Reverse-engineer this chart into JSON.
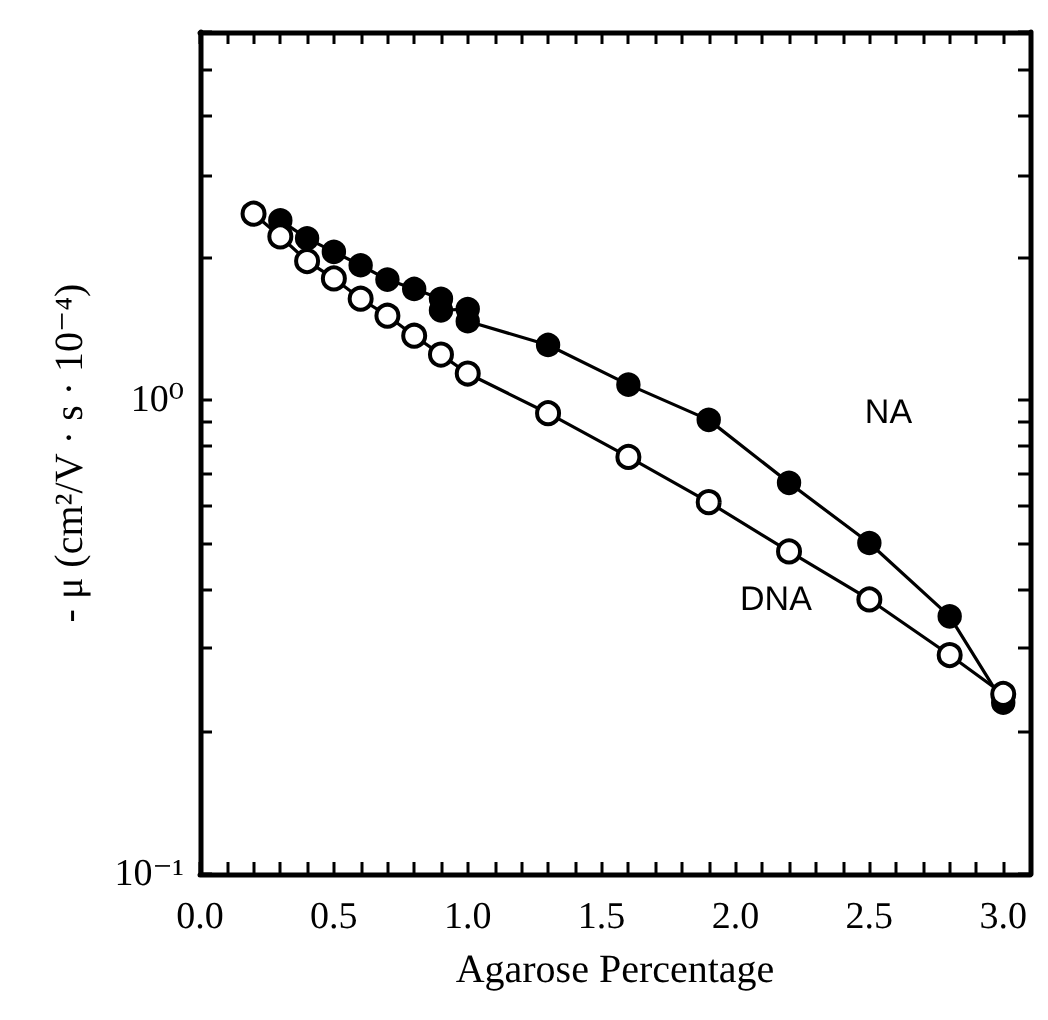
{
  "chart_data": {
    "type": "line",
    "xlabel": "Agarose Percentage",
    "ylabel": "- μ (cm²/V · s · 10⁻⁴)",
    "log": "y",
    "xlim": [
      0,
      3.1
    ],
    "ylim": [
      0.1,
      6
    ],
    "xticks": [
      {
        "value": 0,
        "label": "0.0"
      },
      {
        "value": 0.1,
        "label": null
      },
      {
        "value": 0.2,
        "label": null
      },
      {
        "value": 0.3,
        "label": null
      },
      {
        "value": 0.4,
        "label": null
      },
      {
        "value": 0.5,
        "label": "0.5"
      },
      {
        "value": 0.6,
        "label": null
      },
      {
        "value": 0.7,
        "label": null
      },
      {
        "value": 0.8,
        "label": null
      },
      {
        "value": 0.9,
        "label": null
      },
      {
        "value": 1,
        "label": "1.0"
      },
      {
        "value": 1.1,
        "label": null
      },
      {
        "value": 1.2,
        "label": null
      },
      {
        "value": 1.3,
        "label": null
      },
      {
        "value": 1.4,
        "label": null
      },
      {
        "value": 1.5,
        "label": "1.5"
      },
      {
        "value": 1.6,
        "label": null
      },
      {
        "value": 1.7,
        "label": null
      },
      {
        "value": 1.8,
        "label": null
      },
      {
        "value": 1.9,
        "label": null
      },
      {
        "value": 2,
        "label": "2.0"
      },
      {
        "value": 2.1,
        "label": null
      },
      {
        "value": 2.2,
        "label": null
      },
      {
        "value": 2.3,
        "label": null
      },
      {
        "value": 2.4,
        "label": null
      },
      {
        "value": 2.5,
        "label": "2.5"
      },
      {
        "value": 2.6,
        "label": null
      },
      {
        "value": 2.7,
        "label": null
      },
      {
        "value": 2.8,
        "label": null
      },
      {
        "value": 2.9,
        "label": null
      },
      {
        "value": 3,
        "label": "3.0"
      }
    ],
    "yticks": [
      {
        "value": 0.1,
        "label": "10⁻¹"
      },
      {
        "value": 0.2,
        "label": null
      },
      {
        "value": 0.3,
        "label": null
      },
      {
        "value": 0.4,
        "label": null
      },
      {
        "value": 0.5,
        "label": null
      },
      {
        "value": 0.6,
        "label": null
      },
      {
        "value": 0.7,
        "label": null
      },
      {
        "value": 0.8,
        "label": null
      },
      {
        "value": 0.9,
        "label": null
      },
      {
        "value": 1,
        "label": "10⁰"
      },
      {
        "value": 2,
        "label": null
      },
      {
        "value": 3,
        "label": null
      },
      {
        "value": 4,
        "label": null
      },
      {
        "value": 5,
        "label": null
      },
      {
        "value": 6,
        "label": null
      }
    ],
    "grid": false,
    "legend": false,
    "line_style": "solid",
    "series": [
      {
        "name": "NA",
        "color": "#000000",
        "marker": "circle",
        "x": [
          0.3,
          0.4,
          0.5,
          0.6,
          0.7,
          0.8,
          0.9,
          0.9,
          1.0,
          1.0,
          1.3,
          1.6,
          1.9,
          2.2,
          2.5,
          2.8,
          3.0
        ],
        "values": [
          2.4,
          2.2,
          2.06,
          1.93,
          1.8,
          1.72,
          1.64,
          1.55,
          1.56,
          1.47,
          1.31,
          1.08,
          0.91,
          0.67,
          0.5,
          0.35,
          0.23
        ]
      },
      {
        "name": "DNA",
        "color": "#000000",
        "marker": "open circle",
        "x": [
          0.2,
          0.3,
          0.4,
          0.5,
          0.6,
          0.7,
          0.8,
          0.9,
          1.0,
          1.3,
          1.6,
          1.9,
          2.2,
          2.5,
          2.8,
          3.0
        ],
        "values": [
          2.48,
          2.22,
          1.97,
          1.81,
          1.64,
          1.51,
          1.37,
          1.25,
          1.14,
          0.94,
          0.76,
          0.61,
          0.48,
          0.38,
          0.29,
          0.24
        ]
      }
    ]
  }
}
